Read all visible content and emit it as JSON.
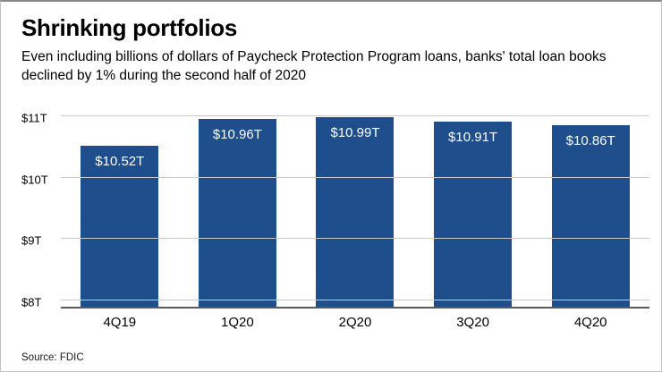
{
  "header": {
    "title": "Shrinking portfolios",
    "subtitle": "Even including billions of dollars of Paycheck Protection Program loans, banks' total loan books declined by 1% during the second half of 2020"
  },
  "source": "Source: FDIC",
  "chart_data": {
    "type": "bar",
    "title": "Shrinking portfolios",
    "categories": [
      "4Q19",
      "1Q20",
      "2Q20",
      "3Q20",
      "4Q20"
    ],
    "values": [
      10.52,
      10.96,
      10.99,
      10.91,
      10.86
    ],
    "value_labels": [
      "$10.52T",
      "$10.96T",
      "$10.99T",
      "$10.91T",
      "$10.86T"
    ],
    "yticks": [
      8,
      9,
      10,
      11
    ],
    "ytick_labels": [
      "$8T",
      "$9T",
      "$10T",
      "$11T"
    ],
    "ylim": [
      8,
      11
    ],
    "xlabel": "",
    "ylabel": "",
    "grid": "horizontal",
    "legend": "none",
    "bar_color": "#1f4e8c",
    "value_label_color": "#ffffff",
    "gridline_color": "#c9c9c9"
  }
}
